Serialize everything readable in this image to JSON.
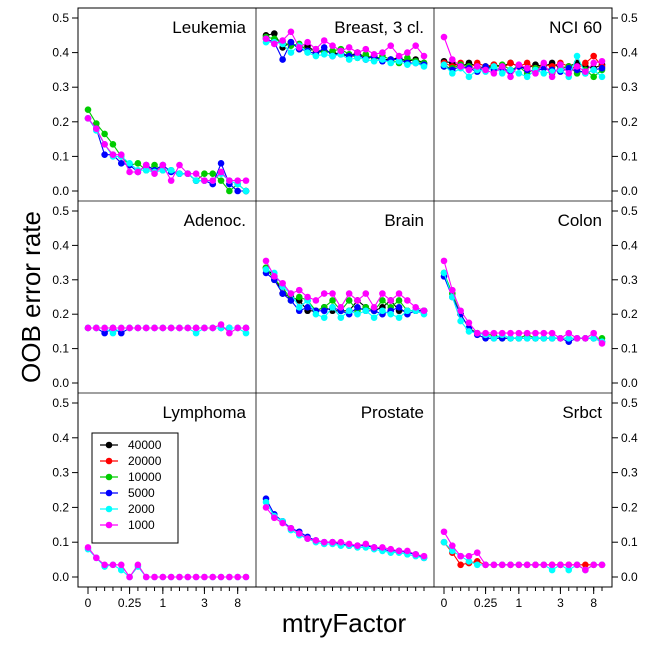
{
  "chart_data": {
    "type": "scatter",
    "layout": "3x3 small multiples, connected points",
    "xlabel": "mtryFactor",
    "ylabel": "OOB error rate",
    "x_ticks": [
      {
        "label": "0",
        "value": 0
      },
      {
        "label": "0.25",
        "value": 0.25
      },
      {
        "label": "1",
        "value": 1
      },
      {
        "label": "3",
        "value": 3
      },
      {
        "label": "8",
        "value": 8
      }
    ],
    "x_levels": [
      0,
      0.05,
      0.1,
      0.15,
      0.2,
      0.25,
      0.33,
      0.5,
      0.75,
      1,
      1.15,
      1.33,
      1.5,
      2,
      3,
      4,
      5,
      6,
      8,
      10
    ],
    "ylim": [
      0,
      0.5
    ],
    "y_ticks": [
      0.0,
      0.1,
      0.2,
      0.3,
      0.4,
      0.5
    ],
    "y_tick_labels": [
      "0.0",
      "0.1",
      "0.2",
      "0.3",
      "0.4",
      "0.5"
    ],
    "legend": {
      "placement": "inside Lymphoma panel, upper-left",
      "entries": [
        {
          "label": "40000",
          "color": "#000000"
        },
        {
          "label": "20000",
          "color": "#ff0000"
        },
        {
          "label": "10000",
          "color": "#00cc00"
        },
        {
          "label": "5000",
          "color": "#0000ff"
        },
        {
          "label": "2000",
          "color": "#00ffff"
        },
        {
          "label": "1000",
          "color": "#ff00ff"
        }
      ]
    },
    "panels": [
      {
        "title": "Leukemia",
        "series": [
          {
            "name": "10000",
            "values": [
              0.235,
              0.195,
              0.165,
              0.135,
              0.1,
              0.075,
              0.08,
              0.06,
              0.075,
              0.06,
              0.06,
              0.05,
              0.05,
              0.03,
              0.05,
              0.05,
              0.03,
              0.0,
              0.02,
              0.0
            ]
          },
          {
            "name": "5000",
            "values": [
              0.21,
              0.18,
              0.105,
              0.105,
              0.08,
              0.075,
              0.055,
              0.075,
              0.06,
              0.075,
              0.055,
              0.05,
              0.05,
              0.03,
              0.03,
              0.02,
              0.08,
              0.02,
              0.0,
              0.0
            ]
          },
          {
            "name": "2000",
            "values": [
              0.21,
              0.175,
              0.135,
              0.1,
              0.1,
              0.08,
              0.06,
              0.06,
              0.055,
              0.06,
              0.06,
              0.05,
              0.05,
              0.03,
              0.03,
              0.03,
              0.05,
              0.03,
              0.02,
              0.0
            ]
          },
          {
            "name": "1000",
            "values": [
              0.21,
              0.18,
              0.135,
              0.105,
              0.105,
              0.055,
              0.055,
              0.075,
              0.05,
              0.075,
              0.03,
              0.075,
              0.05,
              0.05,
              0.03,
              0.03,
              0.055,
              0.03,
              0.03,
              0.03
            ]
          }
        ]
      },
      {
        "title": "Breast, 3 cl.",
        "series": [
          {
            "name": "40000",
            "values": [
              0.45,
              0.455,
              0.415,
              0.43,
              0.41,
              0.42,
              0.4,
              0.405,
              0.4,
              0.395,
              0.39,
              0.4,
              0.385,
              0.39,
              0.38,
              0.38,
              0.385,
              0.375,
              0.38,
              0.37
            ]
          },
          {
            "name": "10000",
            "values": [
              0.445,
              0.44,
              0.43,
              0.42,
              0.425,
              0.405,
              0.41,
              0.4,
              0.405,
              0.41,
              0.395,
              0.385,
              0.395,
              0.38,
              0.39,
              0.38,
              0.37,
              0.385,
              0.375,
              0.37
            ]
          },
          {
            "name": "5000",
            "values": [
              0.44,
              0.43,
              0.38,
              0.43,
              0.41,
              0.405,
              0.395,
              0.415,
              0.39,
              0.4,
              0.39,
              0.395,
              0.38,
              0.39,
              0.375,
              0.38,
              0.38,
              0.37,
              0.37,
              0.365
            ]
          },
          {
            "name": "2000",
            "values": [
              0.43,
              0.43,
              0.425,
              0.4,
              0.42,
              0.4,
              0.39,
              0.395,
              0.39,
              0.395,
              0.38,
              0.385,
              0.38,
              0.375,
              0.38,
              0.37,
              0.375,
              0.365,
              0.37,
              0.36
            ]
          },
          {
            "name": "1000",
            "values": [
              0.44,
              0.425,
              0.435,
              0.46,
              0.415,
              0.43,
              0.41,
              0.435,
              0.42,
              0.405,
              0.415,
              0.4,
              0.41,
              0.395,
              0.4,
              0.42,
              0.39,
              0.4,
              0.42,
              0.39
            ]
          }
        ]
      },
      {
        "title": "NCI 60",
        "series": [
          {
            "name": "40000",
            "values": [
              0.375,
              0.37,
              0.36,
              0.37,
              0.36,
              0.355,
              0.365,
              0.36,
              0.37,
              0.36,
              0.355,
              0.365,
              0.36,
              0.37,
              0.355,
              0.36,
              0.37,
              0.36,
              0.355,
              0.365
            ]
          },
          {
            "name": "20000",
            "values": [
              0.37,
              0.36,
              0.37,
              0.355,
              0.37,
              0.36,
              0.365,
              0.355,
              0.37,
              0.36,
              0.37,
              0.355,
              0.365,
              0.36,
              0.37,
              0.36,
              0.355,
              0.37,
              0.39,
              0.36
            ]
          },
          {
            "name": "10000",
            "values": [
              0.36,
              0.355,
              0.365,
              0.36,
              0.35,
              0.36,
              0.355,
              0.365,
              0.35,
              0.36,
              0.34,
              0.355,
              0.36,
              0.34,
              0.355,
              0.36,
              0.34,
              0.35,
              0.33,
              0.35
            ]
          },
          {
            "name": "5000",
            "values": [
              0.36,
              0.35,
              0.36,
              0.355,
              0.345,
              0.36,
              0.35,
              0.355,
              0.345,
              0.36,
              0.35,
              0.345,
              0.355,
              0.35,
              0.345,
              0.355,
              0.35,
              0.34,
              0.35,
              0.355
            ]
          },
          {
            "name": "2000",
            "values": [
              0.365,
              0.34,
              0.355,
              0.33,
              0.35,
              0.345,
              0.36,
              0.34,
              0.35,
              0.34,
              0.33,
              0.35,
              0.34,
              0.345,
              0.35,
              0.33,
              0.39,
              0.34,
              0.35,
              0.33
            ]
          },
          {
            "name": "1000",
            "values": [
              0.445,
              0.38,
              0.36,
              0.35,
              0.36,
              0.35,
              0.34,
              0.36,
              0.33,
              0.365,
              0.355,
              0.34,
              0.37,
              0.33,
              0.365,
              0.34,
              0.36,
              0.345,
              0.37,
              0.375
            ]
          }
        ]
      },
      {
        "title": "Adenoc.",
        "series": [
          {
            "name": "5000",
            "values": [
              0.16,
              0.16,
              0.145,
              0.16,
              0.145,
              0.16,
              0.16,
              0.16,
              0.16,
              0.16,
              0.16,
              0.16,
              0.16,
              0.16,
              0.16,
              0.16,
              0.16,
              0.16,
              0.16,
              0.16
            ]
          },
          {
            "name": "2000",
            "values": [
              0.16,
              0.16,
              0.16,
              0.145,
              0.16,
              0.16,
              0.16,
              0.16,
              0.16,
              0.16,
              0.16,
              0.16,
              0.16,
              0.145,
              0.16,
              0.16,
              0.16,
              0.16,
              0.16,
              0.145
            ]
          },
          {
            "name": "1000",
            "values": [
              0.16,
              0.16,
              0.16,
              0.16,
              0.16,
              0.16,
              0.16,
              0.16,
              0.16,
              0.16,
              0.16,
              0.16,
              0.16,
              0.16,
              0.16,
              0.16,
              0.17,
              0.145,
              0.16,
              0.16
            ]
          }
        ]
      },
      {
        "title": "Brain",
        "series": [
          {
            "name": "40000",
            "values": [
              0.335,
              0.31,
              0.26,
              0.25,
              0.24,
              0.21,
              0.21,
              0.22,
              0.21,
              0.21,
              0.21,
              0.24,
              0.22,
              0.21,
              0.22,
              0.24,
              0.21,
              0.21,
              0.21,
              0.21
            ]
          },
          {
            "name": "10000",
            "values": [
              0.335,
              0.3,
              0.28,
              0.24,
              0.25,
              0.24,
              0.21,
              0.22,
              0.24,
              0.21,
              0.24,
              0.21,
              0.22,
              0.21,
              0.24,
              0.22,
              0.24,
              0.21,
              0.21,
              0.21
            ]
          },
          {
            "name": "5000",
            "values": [
              0.32,
              0.3,
              0.26,
              0.24,
              0.21,
              0.22,
              0.21,
              0.21,
              0.22,
              0.21,
              0.2,
              0.22,
              0.21,
              0.21,
              0.2,
              0.21,
              0.22,
              0.2,
              0.21,
              0.21
            ]
          },
          {
            "name": "2000",
            "values": [
              0.33,
              0.32,
              0.28,
              0.26,
              0.22,
              0.24,
              0.2,
              0.19,
              0.22,
              0.19,
              0.21,
              0.2,
              0.21,
              0.19,
              0.21,
              0.2,
              0.19,
              0.21,
              0.21,
              0.2
            ]
          },
          {
            "name": "1000",
            "values": [
              0.355,
              0.31,
              0.29,
              0.26,
              0.27,
              0.25,
              0.24,
              0.26,
              0.26,
              0.22,
              0.26,
              0.24,
              0.26,
              0.22,
              0.26,
              0.24,
              0.26,
              0.24,
              0.22,
              0.21
            ]
          }
        ]
      },
      {
        "title": "Colon",
        "series": [
          {
            "name": "10000",
            "values": [
              0.32,
              0.26,
              0.2,
              0.16,
              0.145,
              0.14,
              0.14,
              0.13,
              0.13,
              0.13,
              0.14,
              0.13,
              0.13,
              0.13,
              0.13,
              0.13,
              0.13,
              0.13,
              0.13,
              0.13
            ]
          },
          {
            "name": "5000",
            "values": [
              0.31,
              0.25,
              0.2,
              0.16,
              0.14,
              0.13,
              0.13,
              0.13,
              0.13,
              0.13,
              0.13,
              0.13,
              0.13,
              0.13,
              0.13,
              0.12,
              0.13,
              0.13,
              0.13,
              0.12
            ]
          },
          {
            "name": "2000",
            "values": [
              0.32,
              0.25,
              0.18,
              0.15,
              0.145,
              0.14,
              0.13,
              0.14,
              0.13,
              0.13,
              0.13,
              0.13,
              0.13,
              0.13,
              0.13,
              0.13,
              0.13,
              0.13,
              0.13,
              0.12
            ]
          },
          {
            "name": "1000",
            "values": [
              0.355,
              0.27,
              0.21,
              0.175,
              0.145,
              0.145,
              0.145,
              0.145,
              0.145,
              0.145,
              0.145,
              0.145,
              0.145,
              0.145,
              0.13,
              0.145,
              0.13,
              0.13,
              0.145,
              0.115
            ]
          }
        ]
      },
      {
        "title": "Lymphoma",
        "series": [
          {
            "name": "2000",
            "values": [
              0.08,
              0.055,
              0.03,
              0.035,
              0.02,
              0.0,
              0.03,
              0.0,
              0.0,
              0.0,
              0.0,
              0.0,
              0.0,
              0.0,
              0.0,
              0.0,
              0.0,
              0.0,
              0.0,
              0.0
            ]
          },
          {
            "name": "1000",
            "values": [
              0.085,
              0.055,
              0.035,
              0.035,
              0.035,
              0.0,
              0.035,
              0.0,
              0.0,
              0.0,
              0.0,
              0.0,
              0.0,
              0.0,
              0.0,
              0.0,
              0.0,
              0.0,
              0.0,
              0.0
            ]
          }
        ]
      },
      {
        "title": "Prostate",
        "series": [
          {
            "name": "5000",
            "values": [
              0.225,
              0.18,
              0.16,
              0.14,
              0.13,
              0.115,
              0.105,
              0.1,
              0.1,
              0.095,
              0.09,
              0.09,
              0.09,
              0.085,
              0.08,
              0.075,
              0.075,
              0.07,
              0.065,
              0.055
            ]
          },
          {
            "name": "2000",
            "values": [
              0.215,
              0.175,
              0.16,
              0.135,
              0.12,
              0.11,
              0.1,
              0.095,
              0.095,
              0.09,
              0.09,
              0.085,
              0.085,
              0.08,
              0.075,
              0.07,
              0.07,
              0.065,
              0.06,
              0.055
            ]
          },
          {
            "name": "1000",
            "values": [
              0.2,
              0.17,
              0.155,
              0.14,
              0.125,
              0.11,
              0.105,
              0.1,
              0.1,
              0.1,
              0.095,
              0.09,
              0.095,
              0.085,
              0.085,
              0.08,
              0.075,
              0.075,
              0.065,
              0.06
            ]
          }
        ]
      },
      {
        "title": "Srbct",
        "series": [
          {
            "name": "20000",
            "values": [
              0.1,
              0.07,
              0.035,
              0.04,
              0.045,
              0.035,
              0.035,
              0.035,
              0.035,
              0.035,
              0.035,
              0.035,
              0.035,
              0.035,
              0.035,
              0.035,
              0.035,
              0.035,
              0.035,
              0.035
            ]
          },
          {
            "name": "2000",
            "values": [
              0.1,
              0.075,
              0.06,
              0.045,
              0.035,
              0.035,
              0.035,
              0.035,
              0.035,
              0.035,
              0.035,
              0.035,
              0.035,
              0.02,
              0.035,
              0.02,
              0.035,
              0.02,
              0.035,
              0.035
            ]
          },
          {
            "name": "1000",
            "values": [
              0.13,
              0.09,
              0.06,
              0.06,
              0.07,
              0.035,
              0.035,
              0.035,
              0.035,
              0.035,
              0.035,
              0.035,
              0.035,
              0.035,
              0.035,
              0.035,
              0.035,
              0.02,
              0.035,
              0.035
            ]
          }
        ]
      }
    ]
  }
}
